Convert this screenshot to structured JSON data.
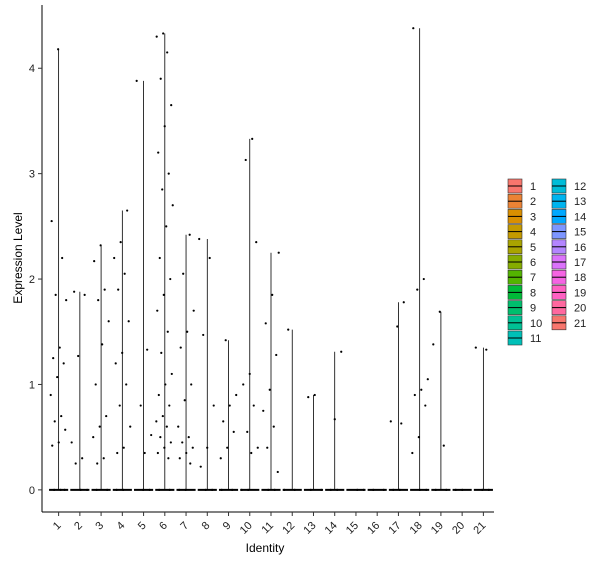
{
  "chart_data": {
    "type": "violin",
    "x_label": "Identity",
    "y_label": "Expression Level",
    "ylim": [
      -0.21,
      4.6
    ],
    "yticks": [
      0,
      1,
      2,
      3,
      4
    ],
    "series": [
      {
        "name": "1",
        "color": "#F8766D",
        "values": [
          0,
          0,
          0,
          4.18,
          2.55,
          2.2,
          1.85,
          1.8,
          1.35,
          1.25,
          1.2,
          1.07,
          0.9,
          0.7,
          0.65,
          0.57,
          0.45,
          0.42
        ]
      },
      {
        "name": "2",
        "color": "#EB8335",
        "values": [
          0,
          0,
          1.88,
          1.85,
          1.27,
          0.45,
          0.3,
          0.25
        ]
      },
      {
        "name": "3",
        "color": "#DA8F00",
        "values": [
          0,
          0,
          2.32,
          2.17,
          1.9,
          1.8,
          1.6,
          1.38,
          1.0,
          0.7,
          0.6,
          0.5,
          0.3,
          0.25
        ]
      },
      {
        "name": "4",
        "color": "#C49A00",
        "values": [
          0,
          0,
          2.65,
          2.35,
          2.2,
          2.05,
          1.9,
          1.6,
          1.3,
          1.2,
          1.0,
          0.8,
          0.6,
          0.4,
          0.35
        ]
      },
      {
        "name": "5",
        "color": "#A9A400",
        "values": [
          0,
          0,
          3.88,
          1.33,
          0.8,
          0.52,
          0.35
        ]
      },
      {
        "name": "6",
        "color": "#86AC00",
        "values": [
          0,
          0,
          4.33,
          4.3,
          4.15,
          3.9,
          3.65,
          3.45,
          3.2,
          3.0,
          2.85,
          2.7,
          2.5,
          2.2,
          2.0,
          1.85,
          1.7,
          1.5,
          1.3,
          1.1,
          1.0,
          0.9,
          0.8,
          0.7,
          0.65,
          0.6,
          0.5,
          0.45,
          0.4,
          0.35,
          0.3
        ]
      },
      {
        "name": "7",
        "color": "#53B400",
        "values": [
          0,
          0,
          2.42,
          2.05,
          1.7,
          1.5,
          1.35,
          1.0,
          0.85,
          0.6,
          0.5,
          0.45,
          0.4,
          0.35,
          0.3,
          0.25
        ]
      },
      {
        "name": "8",
        "color": "#00BA38",
        "values": [
          0,
          0,
          2.38,
          2.2,
          1.47,
          0.8,
          0.4,
          0.22
        ]
      },
      {
        "name": "9",
        "color": "#00BE6D",
        "values": [
          0,
          0,
          1.42,
          0.9,
          0.8,
          0.65,
          0.55,
          0.4,
          0.3
        ]
      },
      {
        "name": "10",
        "color": "#00C094",
        "values": [
          0,
          0,
          3.33,
          3.13,
          2.35,
          1.1,
          1.0,
          0.8,
          0.55,
          0.4,
          0.35
        ]
      },
      {
        "name": "11",
        "color": "#00C0B8",
        "values": [
          0,
          0,
          2.25,
          1.85,
          1.58,
          1.28,
          0.95,
          0.75,
          0.6,
          0.4,
          0.17
        ]
      },
      {
        "name": "12",
        "color": "#00BCD8",
        "values": [
          0,
          0,
          1.52
        ]
      },
      {
        "name": "13",
        "color": "#00B4EF",
        "values": [
          0,
          0,
          0.9,
          0.88
        ]
      },
      {
        "name": "14",
        "color": "#00A8FF",
        "values": [
          0,
          0,
          1.31,
          0.67
        ]
      },
      {
        "name": "15",
        "color": "#7D96FF",
        "values": [
          0,
          0
        ]
      },
      {
        "name": "16",
        "color": "#B385FF",
        "values": [
          0,
          0
        ]
      },
      {
        "name": "17",
        "color": "#DB72FB",
        "values": [
          0,
          0,
          1.78,
          1.55,
          0.65,
          0.63
        ]
      },
      {
        "name": "18",
        "color": "#F564E3",
        "values": [
          0,
          0,
          4.38,
          2.0,
          1.9,
          1.05,
          0.95,
          0.9,
          0.8,
          0.5,
          0.35
        ]
      },
      {
        "name": "19",
        "color": "#FF61C3",
        "values": [
          0,
          0,
          1.69,
          1.38,
          0.42
        ]
      },
      {
        "name": "20",
        "color": "#FF689F",
        "values": [
          0,
          0
        ]
      },
      {
        "name": "21",
        "color": "#F8766D",
        "values": [
          0,
          0,
          1.35,
          1.33
        ]
      }
    ]
  }
}
